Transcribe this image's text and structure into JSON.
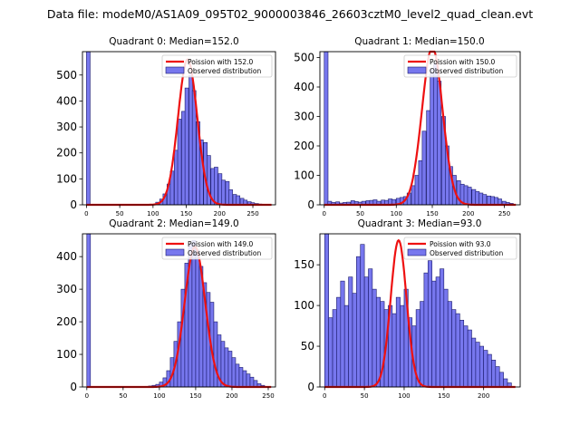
{
  "figure_title": "Data file: modeM0/AS1A09_095T02_9000003846_26603cztM0_level2_quad_clean.evt",
  "colors": {
    "bar_fill": "#7777ee",
    "bar_edge": "#1a1a6b",
    "poisson_line": "#ee1111",
    "axis": "#000000"
  },
  "chart_data": [
    {
      "type": "bar",
      "title": "Quadrant 0: Median=152.0",
      "legend": [
        "Poission with 152.0",
        "Observed distribution"
      ],
      "legend_position": "top-right",
      "xlim": [
        -6,
        284
      ],
      "ylim": [
        0,
        590
      ],
      "xticks": [
        0,
        50,
        100,
        150,
        200,
        250
      ],
      "yticks": [
        0,
        100,
        200,
        300,
        400,
        500
      ],
      "bin_width": 5.5,
      "bins_x": [
        0,
        104,
        110,
        115,
        121,
        126,
        132,
        137,
        143,
        148,
        154,
        159,
        165,
        170,
        176,
        181,
        187,
        192,
        198,
        203,
        209,
        214,
        220,
        225,
        231,
        236,
        242,
        247,
        253,
        258,
        264,
        269
      ],
      "bins_y": [
        590,
        10,
        22,
        42,
        80,
        130,
        210,
        330,
        360,
        450,
        500,
        440,
        320,
        250,
        240,
        190,
        140,
        145,
        120,
        95,
        90,
        58,
        40,
        35,
        25,
        18,
        12,
        8,
        5,
        3,
        2,
        1
      ],
      "poisson_median": 152.0,
      "poisson_peak": 560
    },
    {
      "type": "bar",
      "title": "Quadrant 1: Median=150.0",
      "legend": [
        "Poission with 150.0",
        "Observed distribution"
      ],
      "legend_position": "top-right",
      "xlim": [
        -6,
        272
      ],
      "ylim": [
        0,
        520
      ],
      "xticks": [
        0,
        50,
        100,
        150,
        200,
        250
      ],
      "yticks": [
        0,
        100,
        200,
        300,
        400,
        500
      ],
      "bin_width": 5.3,
      "bins_x": [
        0,
        5,
        10,
        16,
        21,
        26,
        31,
        37,
        42,
        47,
        52,
        58,
        63,
        68,
        73,
        79,
        84,
        89,
        94,
        100,
        105,
        110,
        115,
        121,
        126,
        131,
        136,
        142,
        147,
        152,
        157,
        163,
        168,
        173,
        178,
        184,
        189,
        194,
        199,
        205,
        210,
        215,
        220,
        226,
        231,
        236,
        241,
        247,
        252,
        257
      ],
      "bins_y": [
        520,
        12,
        8,
        10,
        6,
        8,
        9,
        14,
        11,
        9,
        12,
        14,
        15,
        17,
        12,
        16,
        15,
        20,
        18,
        22,
        25,
        28,
        40,
        65,
        100,
        150,
        250,
        320,
        460,
        480,
        420,
        300,
        200,
        130,
        100,
        82,
        70,
        65,
        60,
        52,
        45,
        40,
        35,
        30,
        28,
        25,
        20,
        12,
        8,
        5
      ],
      "poisson_median": 150.0,
      "poisson_peak": 535
    },
    {
      "type": "bar",
      "title": "Quadrant 2: Median=149.0",
      "legend": [
        "Poission with 149.0",
        "Observed distribution"
      ],
      "legend_position": "top-right",
      "xlim": [
        -6,
        260
      ],
      "ylim": [
        0,
        470
      ],
      "xticks": [
        0,
        50,
        100,
        150,
        200,
        250
      ],
      "yticks": [
        0,
        100,
        200,
        300,
        400
      ],
      "bin_width": 5.0,
      "bins_x": [
        0,
        80,
        85,
        90,
        95,
        100,
        105,
        110,
        115,
        120,
        125,
        130,
        135,
        140,
        145,
        150,
        155,
        160,
        165,
        170,
        175,
        180,
        185,
        190,
        195,
        200,
        205,
        210,
        215,
        220,
        225,
        230,
        235,
        240
      ],
      "bins_y": [
        470,
        2,
        3,
        5,
        8,
        15,
        28,
        50,
        90,
        140,
        200,
        300,
        380,
        440,
        450,
        420,
        370,
        320,
        290,
        260,
        200,
        160,
        140,
        120,
        110,
        90,
        70,
        60,
        50,
        40,
        30,
        20,
        10,
        5
      ],
      "poisson_median": 149.0,
      "poisson_peak": 430
    },
    {
      "type": "bar",
      "title": "Quadrant 3: Median=93.0",
      "legend": [
        "Poission with 93.0",
        "Observed distribution"
      ],
      "legend_position": "top-right",
      "xlim": [
        -6,
        246
      ],
      "ylim": [
        0,
        188
      ],
      "xticks": [
        0,
        50,
        100,
        150,
        200
      ],
      "yticks": [
        0,
        50,
        100,
        150
      ],
      "bin_width": 5.0,
      "bins_x": [
        0,
        5,
        10,
        15,
        20,
        25,
        30,
        35,
        40,
        45,
        50,
        55,
        60,
        65,
        70,
        75,
        80,
        85,
        90,
        95,
        100,
        105,
        110,
        115,
        120,
        125,
        130,
        135,
        140,
        145,
        150,
        155,
        160,
        165,
        170,
        175,
        180,
        185,
        190,
        195,
        200,
        205,
        210,
        215,
        220,
        225,
        230
      ],
      "bins_y": [
        188,
        85,
        95,
        110,
        130,
        100,
        135,
        115,
        160,
        175,
        135,
        145,
        120,
        110,
        105,
        95,
        100,
        90,
        110,
        100,
        120,
        85,
        75,
        95,
        105,
        140,
        155,
        130,
        135,
        145,
        120,
        105,
        95,
        90,
        82,
        75,
        70,
        60,
        55,
        50,
        45,
        40,
        33,
        25,
        18,
        10,
        5
      ],
      "poisson_median": 93.0,
      "poisson_peak": 180
    }
  ]
}
